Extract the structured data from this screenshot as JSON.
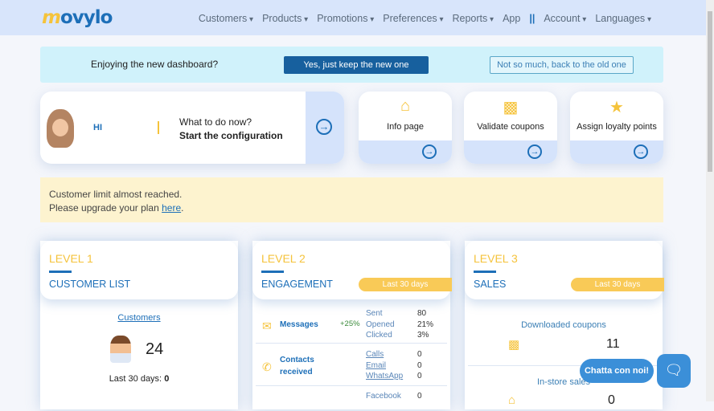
{
  "header": {
    "logo": "movylo",
    "nav": [
      "Customers",
      "Products",
      "Promotions",
      "Preferences",
      "Reports",
      "App",
      "||",
      "Account",
      "Languages"
    ]
  },
  "feedback": {
    "question": "Enjoying the new dashboard?",
    "keep": "Yes, just keep the new one",
    "back": "Not so much, back to the old one"
  },
  "config": {
    "greeting": "HI",
    "what": "What to do now?",
    "start": "Start the configuration"
  },
  "shortcuts": [
    {
      "label": "Info page",
      "icon": "store-icon"
    },
    {
      "label": "Validate coupons",
      "icon": "ticket-icon"
    },
    {
      "label": "Assign loyalty points",
      "icon": "star-icon"
    }
  ],
  "warning": {
    "line1": "Customer limit almost reached.",
    "line2": "Please upgrade your plan ",
    "link": "here",
    "end": "."
  },
  "level1": {
    "level": "LEVEL 1",
    "title": "CUSTOMER LIST",
    "link": "Customers",
    "count": "24",
    "last_label": "Last 30 days:",
    "last_value": "0"
  },
  "level2": {
    "level": "LEVEL 2",
    "title": "ENGAGEMENT",
    "badge": "Last 30 days",
    "messages": {
      "name": "Messages",
      "delta": "+25%",
      "keys": [
        "Sent",
        "Opened",
        "Clicked"
      ],
      "values": [
        "80",
        "21%",
        "3%"
      ]
    },
    "contacts": {
      "name1": "Contacts",
      "name2": "received",
      "keys": [
        "Calls",
        "Email",
        "WhatsApp"
      ],
      "values": [
        "0",
        "0",
        "0"
      ]
    },
    "social": {
      "keys": [
        "Facebook"
      ],
      "values": [
        "0"
      ]
    }
  },
  "level3": {
    "level": "LEVEL 3",
    "title": "SALES",
    "badge": "Last 30 days",
    "coupons_label": "Downloaded coupons",
    "coupons": "11",
    "instore_label": "In-store sales",
    "instore": "0"
  },
  "chat": {
    "label": "Chatta con noi!"
  }
}
